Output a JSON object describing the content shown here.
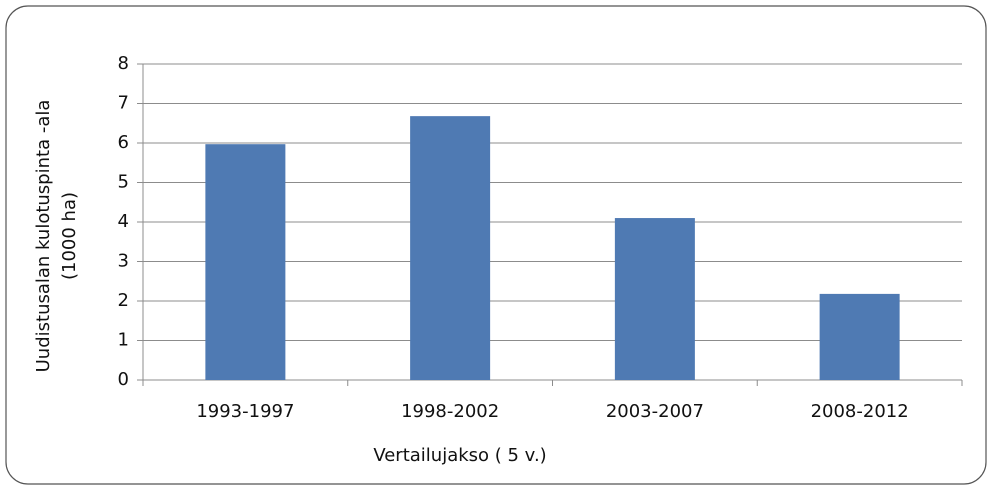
{
  "chart_data": {
    "type": "bar",
    "y_label": [
      "Uudistusalan kulotuspinta -ala",
      "(1000 ha)"
    ],
    "x_label": "Vertailujakso ( 5 v.)",
    "categories": [
      "1993-1997",
      "1998-2002",
      "2003-2007",
      "2008-2012"
    ],
    "values": [
      5.97,
      6.68,
      4.1,
      2.18
    ],
    "color": "#4f7ab3",
    "ylim": [
      0,
      8
    ],
    "yticks": [
      0,
      1,
      2,
      3,
      4,
      5,
      6,
      7,
      8
    ],
    "grid": true
  }
}
